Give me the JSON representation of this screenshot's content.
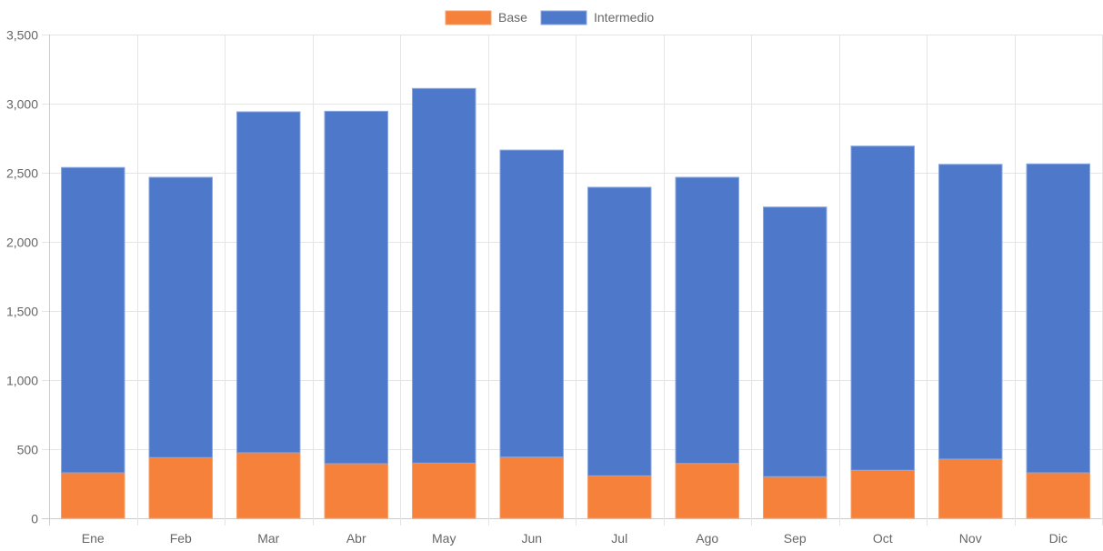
{
  "chart_data": {
    "type": "bar",
    "stacked": true,
    "title": "",
    "xlabel": "",
    "ylabel": "",
    "categories": [
      "Ene",
      "Feb",
      "Mar",
      "Abr",
      "May",
      "Jun",
      "Jul",
      "Ago",
      "Sep",
      "Oct",
      "Nov",
      "Dic"
    ],
    "series": [
      {
        "name": "Base",
        "color": "#F5813A",
        "values": [
          329,
          439,
          474,
          395,
          399,
          443,
          307,
          397,
          301,
          347,
          428,
          329
        ]
      },
      {
        "name": "Intermedio",
        "color": "#4E79CB",
        "values": [
          2209,
          2028,
          2467,
          2550,
          2711,
          2221,
          2088,
          2070,
          1951,
          2346,
          2133,
          2235
        ]
      }
    ],
    "ylim": [
      0,
      3500
    ],
    "yticks": [
      0,
      500,
      1000,
      1500,
      2000,
      2500,
      3000,
      3500
    ],
    "ytick_labels": [
      "0",
      "500",
      "1,000",
      "1,500",
      "2,000",
      "2,500",
      "3,000",
      "3,500"
    ],
    "grid": true,
    "legend_position": "top-center"
  }
}
